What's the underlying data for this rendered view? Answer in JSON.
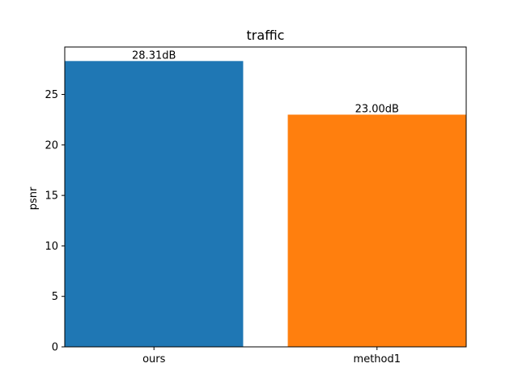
{
  "chart_data": {
    "type": "bar",
    "title": "traffic",
    "xlabel": "",
    "ylabel": "psnr",
    "categories": [
      "ours",
      "method1"
    ],
    "values": [
      28.31,
      23.0
    ],
    "data_labels": [
      "28.31dB",
      "23.00dB"
    ],
    "colors": [
      "#1f77b4",
      "#ff7f0e"
    ],
    "ylim": [
      0,
      29.7
    ],
    "yticks": [
      0,
      5,
      10,
      15,
      20,
      25
    ],
    "grid": false
  }
}
